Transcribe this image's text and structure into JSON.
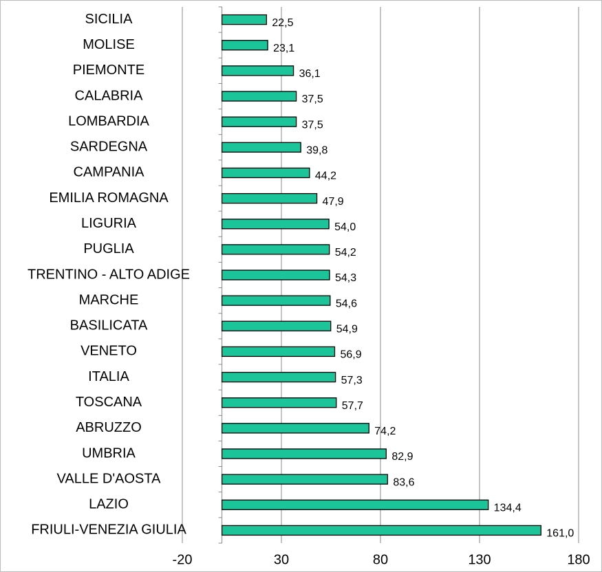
{
  "chart_data": {
    "type": "bar",
    "orientation": "horizontal",
    "categories": [
      "SICILIA",
      "MOLISE",
      "PIEMONTE",
      "CALABRIA",
      "LOMBARDIA",
      "SARDEGNA",
      "CAMPANIA",
      "EMILIA ROMAGNA",
      "LIGURIA",
      "PUGLIA",
      "TRENTINO - ALTO ADIGE",
      "MARCHE",
      "BASILICATA",
      "VENETO",
      "ITALIA",
      "TOSCANA",
      "ABRUZZO",
      "UMBRIA",
      "VALLE D'AOSTA",
      "LAZIO",
      "FRIULI-VENEZIA GIULIA"
    ],
    "values": [
      22.5,
      23.1,
      36.1,
      37.5,
      37.5,
      39.8,
      44.2,
      47.9,
      54,
      54.2,
      54.3,
      54.6,
      54.9,
      56.9,
      57.3,
      57.7,
      74.2,
      82.9,
      83.6,
      134.4,
      161
    ],
    "value_labels": [
      "22,5",
      "23,1",
      "36,1",
      "37,5",
      "37,5",
      "39,8",
      "44,2",
      "47,9",
      "54,0",
      "54,2",
      "54,3",
      "54,6",
      "54,9",
      "56,9",
      "57,3",
      "57,7",
      "74,2",
      "82,9",
      "83,6",
      "134,4",
      "161,0"
    ],
    "color": "#1cc49a",
    "xlim": [
      -20,
      180
    ],
    "xticks": [
      -20,
      30,
      80,
      130,
      180
    ],
    "grid": true
  }
}
